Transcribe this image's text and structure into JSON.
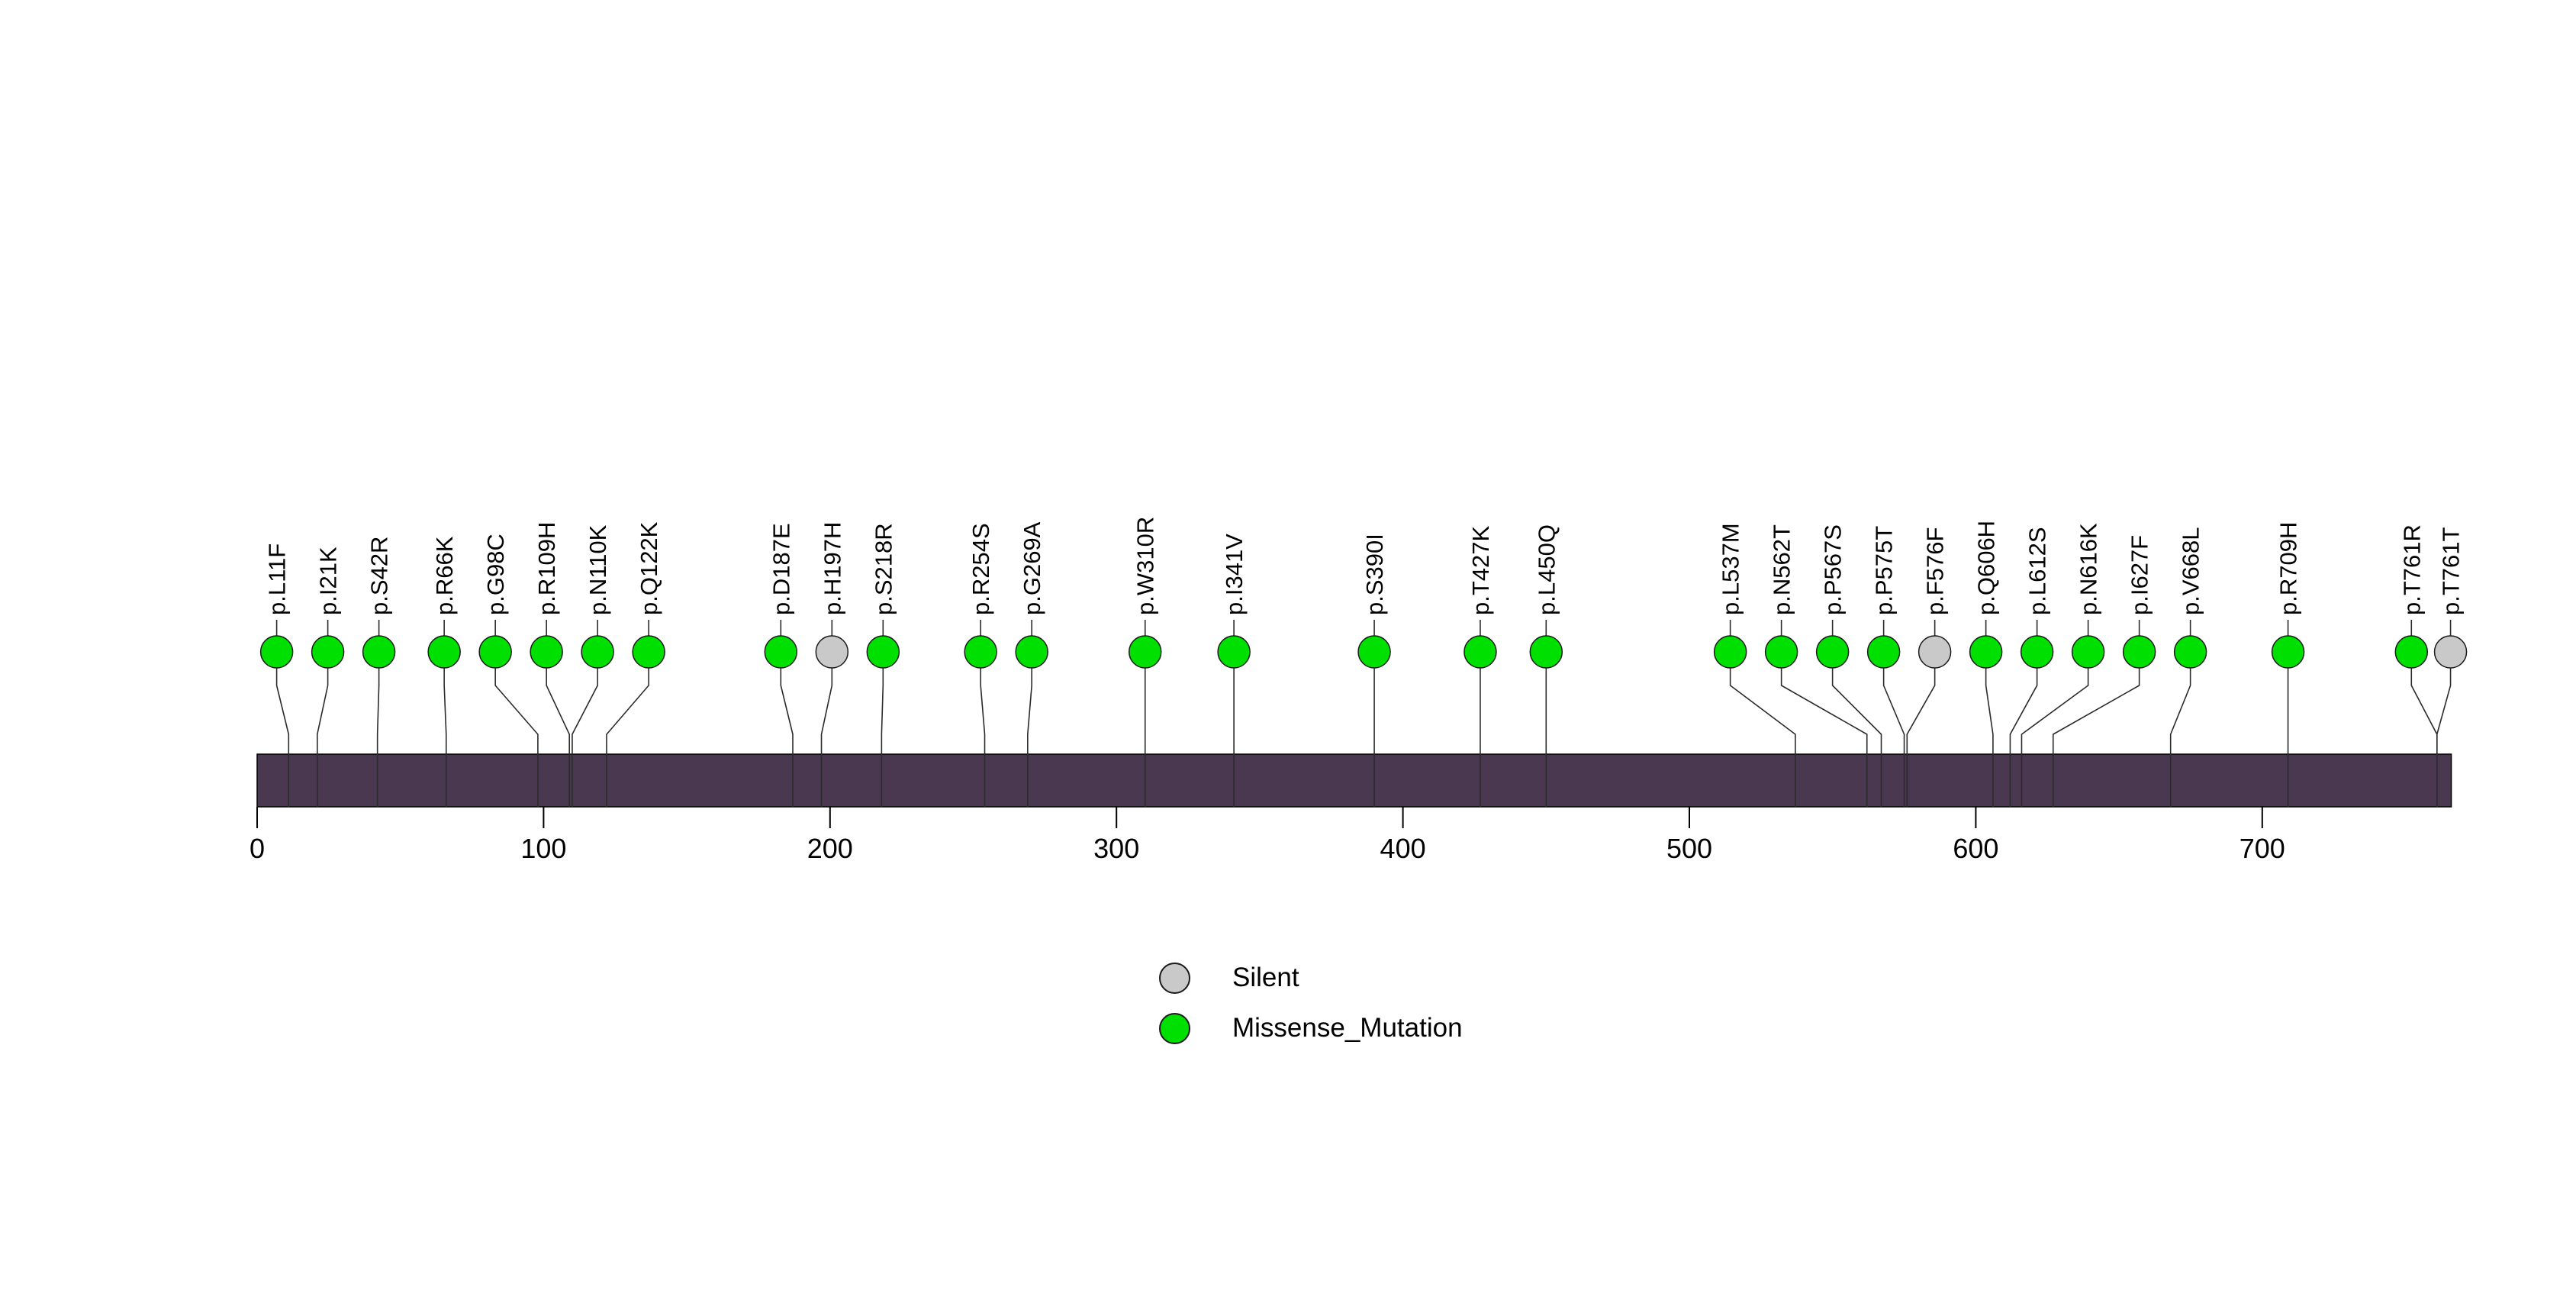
{
  "chart_data": {
    "type": "lollipop",
    "title": "",
    "xlabel": "",
    "ylabel": "",
    "xlim": [
      0,
      766
    ],
    "axis_ticks": [
      0,
      100,
      200,
      300,
      400,
      500,
      600,
      700
    ],
    "grid": false,
    "legend_position": "bottom-center",
    "colors": {
      "Missense_Mutation": "#00E000",
      "Silent": "#C9C9C9",
      "backbone": "#4A3850",
      "line": "#2B2B2B",
      "circle_stroke": "#1A1A1A",
      "text": "#000000"
    },
    "legend": [
      {
        "label": "Silent",
        "type": "Silent"
      },
      {
        "label": "Missense_Mutation",
        "type": "Missense_Mutation"
      }
    ],
    "mutations": [
      {
        "label": "p.L11F",
        "position": 11,
        "type": "Missense_Mutation"
      },
      {
        "label": "p.I21K",
        "position": 21,
        "type": "Missense_Mutation"
      },
      {
        "label": "p.S42R",
        "position": 42,
        "type": "Missense_Mutation"
      },
      {
        "label": "p.R66K",
        "position": 66,
        "type": "Missense_Mutation"
      },
      {
        "label": "p.G98C",
        "position": 98,
        "type": "Missense_Mutation"
      },
      {
        "label": "p.R109H",
        "position": 109,
        "type": "Missense_Mutation"
      },
      {
        "label": "p.N110K",
        "position": 110,
        "type": "Missense_Mutation"
      },
      {
        "label": "p.Q122K",
        "position": 122,
        "type": "Missense_Mutation"
      },
      {
        "label": "p.D187E",
        "position": 187,
        "type": "Missense_Mutation"
      },
      {
        "label": "p.H197H",
        "position": 197,
        "type": "Silent"
      },
      {
        "label": "p.S218R",
        "position": 218,
        "type": "Missense_Mutation"
      },
      {
        "label": "p.R254S",
        "position": 254,
        "type": "Missense_Mutation"
      },
      {
        "label": "p.G269A",
        "position": 269,
        "type": "Missense_Mutation"
      },
      {
        "label": "p.W310R",
        "position": 310,
        "type": "Missense_Mutation"
      },
      {
        "label": "p.I341V",
        "position": 341,
        "type": "Missense_Mutation"
      },
      {
        "label": "p.S390I",
        "position": 390,
        "type": "Missense_Mutation"
      },
      {
        "label": "p.T427K",
        "position": 427,
        "type": "Missense_Mutation"
      },
      {
        "label": "p.L450Q",
        "position": 450,
        "type": "Missense_Mutation"
      },
      {
        "label": "p.L537M",
        "position": 537,
        "type": "Missense_Mutation"
      },
      {
        "label": "p.N562T",
        "position": 562,
        "type": "Missense_Mutation"
      },
      {
        "label": "p.P567S",
        "position": 567,
        "type": "Missense_Mutation"
      },
      {
        "label": "p.P575T",
        "position": 575,
        "type": "Missense_Mutation"
      },
      {
        "label": "p.F576F",
        "position": 576,
        "type": "Silent"
      },
      {
        "label": "p.Q606H",
        "position": 606,
        "type": "Missense_Mutation"
      },
      {
        "label": "p.L612S",
        "position": 612,
        "type": "Missense_Mutation"
      },
      {
        "label": "p.N616K",
        "position": 616,
        "type": "Missense_Mutation"
      },
      {
        "label": "p.I627F",
        "position": 627,
        "type": "Missense_Mutation"
      },
      {
        "label": "p.V668L",
        "position": 668,
        "type": "Missense_Mutation"
      },
      {
        "label": "p.R709H",
        "position": 709,
        "type": "Missense_Mutation"
      },
      {
        "label": "p.T761R",
        "position": 761,
        "type": "Missense_Mutation"
      },
      {
        "label": "p.T761T",
        "position": 761,
        "type": "Silent"
      }
    ]
  }
}
